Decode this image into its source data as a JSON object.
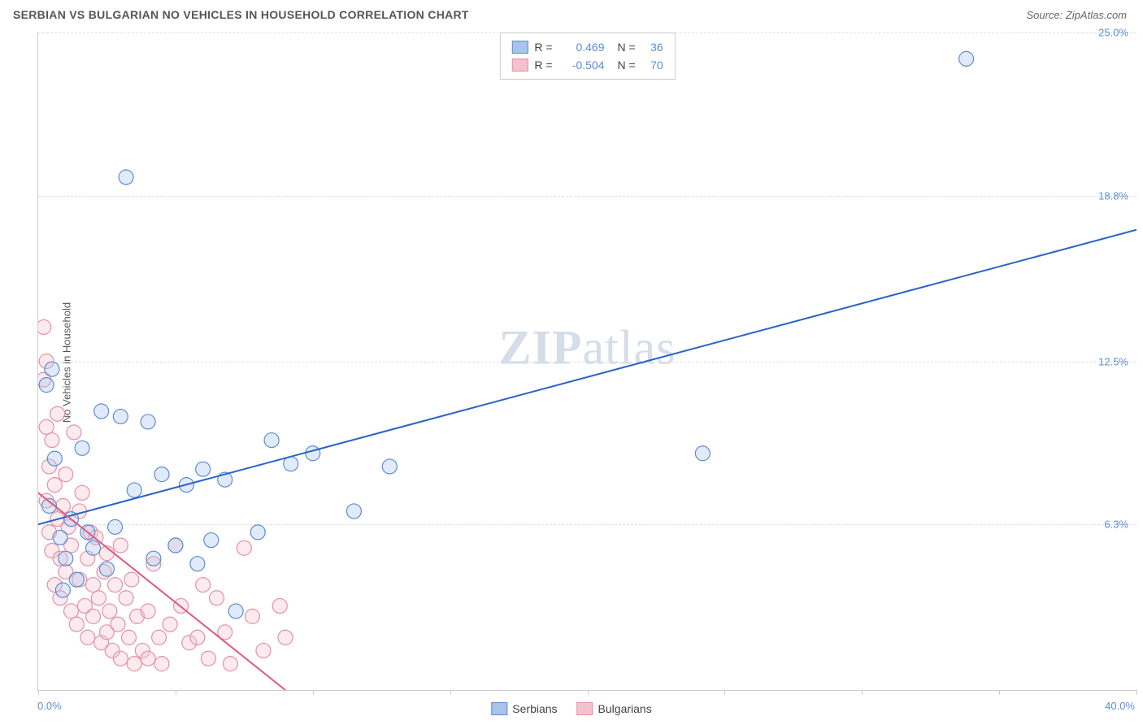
{
  "title": "SERBIAN VS BULGARIAN NO VEHICLES IN HOUSEHOLD CORRELATION CHART",
  "source": "Source: ZipAtlas.com",
  "ylabel": "No Vehicles in Household",
  "watermark_a": "ZIP",
  "watermark_b": "atlas",
  "chart": {
    "type": "scatter",
    "background_color": "#ffffff",
    "grid_color": "#dddddd",
    "axis_color": "#cccccc",
    "tick_label_color": "#5b8dd6",
    "xlim": [
      0,
      40
    ],
    "ylim": [
      0,
      25
    ],
    "xticks": [
      0,
      5,
      10,
      15,
      20,
      25,
      30,
      35,
      40
    ],
    "yticks": [
      6.3,
      12.5,
      18.8,
      25.0
    ],
    "ytick_labels": [
      "6.3%",
      "12.5%",
      "18.8%",
      "25.0%"
    ],
    "x_min_label": "0.0%",
    "x_max_label": "40.0%",
    "marker_radius": 9,
    "marker_fill_opacity": 0.35,
    "marker_stroke_width": 1.2,
    "line_width": 2
  },
  "series": {
    "serbians": {
      "label": "Serbians",
      "color_stroke": "#5b8dd6",
      "color_fill": "#a9c4ea",
      "R": "0.469",
      "N": "36",
      "trend": {
        "x1": 0,
        "y1": 6.3,
        "x2": 40,
        "y2": 17.5
      },
      "points": [
        [
          0.3,
          11.6
        ],
        [
          0.4,
          7.0
        ],
        [
          0.5,
          12.2
        ],
        [
          0.6,
          8.8
        ],
        [
          0.8,
          5.8
        ],
        [
          1.0,
          5.0
        ],
        [
          1.2,
          6.5
        ],
        [
          1.4,
          4.2
        ],
        [
          1.6,
          9.2
        ],
        [
          1.8,
          6.0
        ],
        [
          2.0,
          5.4
        ],
        [
          2.3,
          10.6
        ],
        [
          2.5,
          4.6
        ],
        [
          2.8,
          6.2
        ],
        [
          3.0,
          10.4
        ],
        [
          3.2,
          19.5
        ],
        [
          3.5,
          7.6
        ],
        [
          4.0,
          10.2
        ],
        [
          4.2,
          5.0
        ],
        [
          4.5,
          8.2
        ],
        [
          5.0,
          5.5
        ],
        [
          5.4,
          7.8
        ],
        [
          5.8,
          4.8
        ],
        [
          6.0,
          8.4
        ],
        [
          6.3,
          5.7
        ],
        [
          6.8,
          8.0
        ],
        [
          7.2,
          3.0
        ],
        [
          8.0,
          6.0
        ],
        [
          8.5,
          9.5
        ],
        [
          9.2,
          8.6
        ],
        [
          10.0,
          9.0
        ],
        [
          11.5,
          6.8
        ],
        [
          12.8,
          8.5
        ],
        [
          24.2,
          9.0
        ],
        [
          33.8,
          24.0
        ],
        [
          0.9,
          3.8
        ]
      ]
    },
    "bulgarians": {
      "label": "Bulgarians",
      "color_stroke": "#e591a5",
      "color_fill": "#f4c2ce",
      "R": "-0.504",
      "N": "70",
      "trend": {
        "x1": 0,
        "y1": 7.5,
        "x2": 9.0,
        "y2": 0
      },
      "points": [
        [
          0.2,
          13.8
        ],
        [
          0.2,
          11.8
        ],
        [
          0.3,
          10.0
        ],
        [
          0.3,
          7.2
        ],
        [
          0.4,
          8.5
        ],
        [
          0.4,
          6.0
        ],
        [
          0.5,
          9.5
        ],
        [
          0.5,
          5.3
        ],
        [
          0.6,
          7.8
        ],
        [
          0.6,
          4.0
        ],
        [
          0.7,
          10.5
        ],
        [
          0.7,
          6.5
        ],
        [
          0.8,
          3.5
        ],
        [
          0.8,
          5.0
        ],
        [
          0.9,
          7.0
        ],
        [
          1.0,
          4.5
        ],
        [
          1.0,
          8.2
        ],
        [
          1.1,
          6.2
        ],
        [
          1.2,
          3.0
        ],
        [
          1.2,
          5.5
        ],
        [
          1.3,
          9.8
        ],
        [
          1.4,
          2.5
        ],
        [
          1.5,
          6.8
        ],
        [
          1.5,
          4.2
        ],
        [
          1.6,
          7.5
        ],
        [
          1.7,
          3.2
        ],
        [
          1.8,
          5.0
        ],
        [
          1.8,
          2.0
        ],
        [
          1.9,
          6.0
        ],
        [
          2.0,
          4.0
        ],
        [
          2.0,
          2.8
        ],
        [
          2.1,
          5.8
        ],
        [
          2.2,
          3.5
        ],
        [
          2.3,
          1.8
        ],
        [
          2.4,
          4.5
        ],
        [
          2.5,
          2.2
        ],
        [
          2.5,
          5.2
        ],
        [
          2.6,
          3.0
        ],
        [
          2.7,
          1.5
        ],
        [
          2.8,
          4.0
        ],
        [
          2.9,
          2.5
        ],
        [
          3.0,
          5.5
        ],
        [
          3.0,
          1.2
        ],
        [
          3.2,
          3.5
        ],
        [
          3.3,
          2.0
        ],
        [
          3.4,
          4.2
        ],
        [
          3.5,
          1.0
        ],
        [
          3.6,
          2.8
        ],
        [
          3.8,
          1.5
        ],
        [
          4.0,
          3.0
        ],
        [
          4.0,
          1.2
        ],
        [
          4.2,
          4.8
        ],
        [
          4.4,
          2.0
        ],
        [
          4.5,
          1.0
        ],
        [
          4.8,
          2.5
        ],
        [
          5.0,
          5.5
        ],
        [
          5.2,
          3.2
        ],
        [
          5.5,
          1.8
        ],
        [
          5.8,
          2.0
        ],
        [
          6.0,
          4.0
        ],
        [
          6.2,
          1.2
        ],
        [
          6.5,
          3.5
        ],
        [
          6.8,
          2.2
        ],
        [
          7.0,
          1.0
        ],
        [
          7.5,
          5.4
        ],
        [
          7.8,
          2.8
        ],
        [
          8.2,
          1.5
        ],
        [
          8.8,
          3.2
        ],
        [
          9.0,
          2.0
        ],
        [
          0.3,
          12.5
        ]
      ]
    }
  },
  "legend_top": {
    "r_label": "R =",
    "n_label": "N ="
  }
}
